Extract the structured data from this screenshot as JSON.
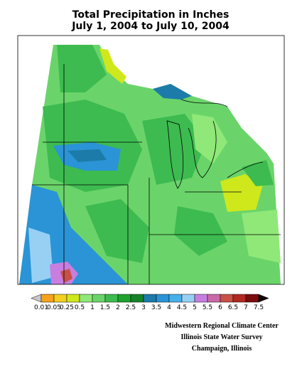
{
  "header": {
    "title": "Total Precipitation in Inches",
    "subtitle": "July 1, 2004 to July 10, 2004"
  },
  "legend": {
    "colors": [
      "#c8c8c8",
      "#f7a21c",
      "#f2cf1e",
      "#cfe81c",
      "#8fe878",
      "#6ad46a",
      "#3dbb50",
      "#1fa22e",
      "#16822a",
      "#1c7ba8",
      "#2a94d6",
      "#49b0ea",
      "#98d0f4",
      "#c77ee0",
      "#c86aa8",
      "#c85046",
      "#b02a22",
      "#7a0c0c",
      "#100808"
    ],
    "labels": [
      "0.01",
      "0.05",
      "0.25",
      "0.5",
      "1",
      "1.5",
      "2",
      "2.5",
      "3",
      "3.5",
      "4",
      "4.5",
      "5",
      "5.5",
      "6",
      "6.5",
      "7",
      "7.5"
    ]
  },
  "credits": [
    "Midwestern Regional Climate Center",
    "Illinois State Water Survey",
    "Champaign, Illinois"
  ]
}
